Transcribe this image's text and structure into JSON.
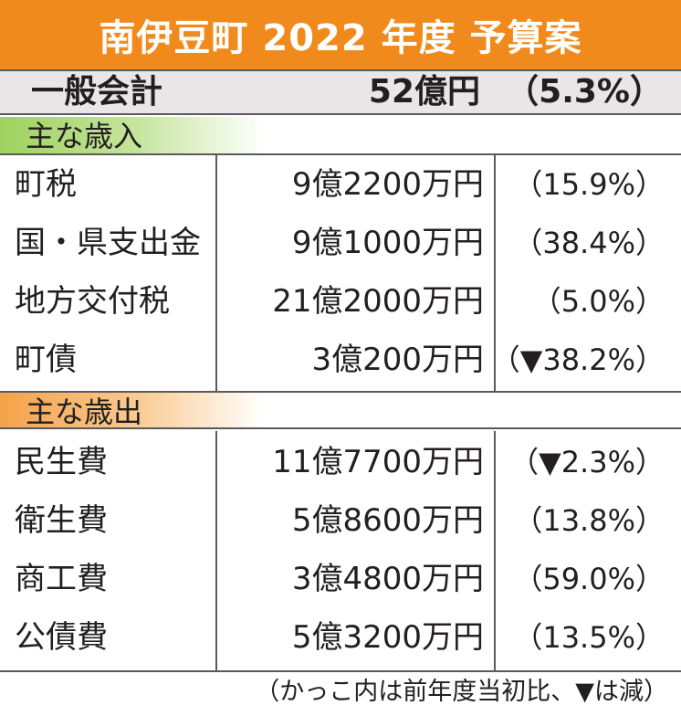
{
  "title": "南伊豆町 2022 年度 予算案",
  "summary": {
    "label": "一般会計",
    "amount": "52億円",
    "change": "（5.3%）"
  },
  "revenue": {
    "header": "主な歳入",
    "rows": [
      {
        "name": "町税",
        "amount": "9億2200万円",
        "change": "（15.9%）"
      },
      {
        "name": "国・県支出金",
        "amount": "9億1000万円",
        "change": "（38.4%）"
      },
      {
        "name": "地方交付税",
        "amount": "21億2000万円",
        "change": "（5.0%）"
      },
      {
        "name": "町債",
        "amount": "3億200万円",
        "change": "（▼38.2%）"
      }
    ]
  },
  "expenditure": {
    "header": "主な歳出",
    "rows": [
      {
        "name": "民生費",
        "amount": "11億7700万円",
        "change": "（▼2.3%）"
      },
      {
        "name": "衛生費",
        "amount": "5億8600万円",
        "change": "（13.8%）"
      },
      {
        "name": "商工費",
        "amount": "3億4800万円",
        "change": "（59.0%）"
      },
      {
        "name": "公債費",
        "amount": "5億3200万円",
        "change": "（13.5%）"
      }
    ]
  },
  "footnote": "（かっこ内は前年度当初比、▼は減）",
  "colors": {
    "title_bg": "#f08a1c",
    "revenue_header": "#9ed25e",
    "expenditure_header": "#f5a24a",
    "summary_bg": "#e8e6e6"
  }
}
